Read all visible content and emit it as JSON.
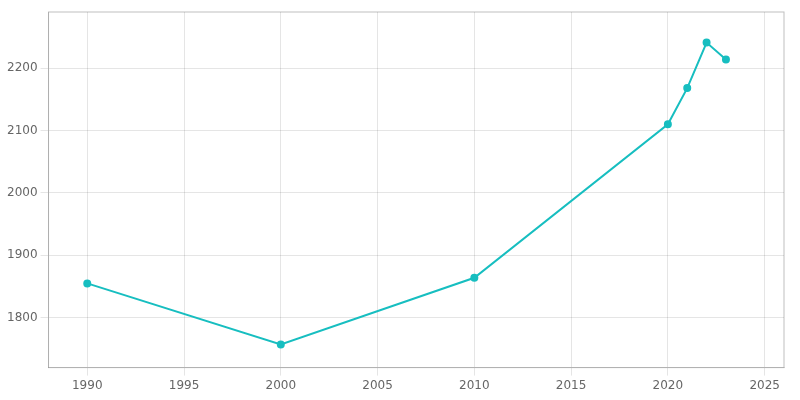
{
  "chart_data": {
    "type": "line",
    "x": [
      1990,
      2000,
      2010,
      2020,
      2021,
      2022,
      2023
    ],
    "values": [
      1855,
      1757,
      1864,
      2110,
      2168,
      2241,
      2214
    ],
    "color": "#17BEC0",
    "marker": "circle",
    "xlim": [
      1988,
      2026
    ],
    "ylim": [
      1720,
      2290
    ],
    "xticks": [
      1990,
      1995,
      2000,
      2005,
      2010,
      2015,
      2020,
      2025
    ],
    "yticks": [
      1800,
      1900,
      2000,
      2100,
      2200
    ],
    "grid": true
  }
}
